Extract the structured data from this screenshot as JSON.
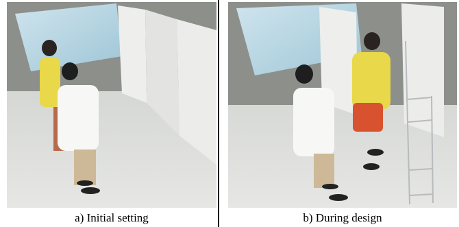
{
  "panels": [
    {
      "caption": "a) Initial setting"
    },
    {
      "caption": "b) During design"
    }
  ]
}
